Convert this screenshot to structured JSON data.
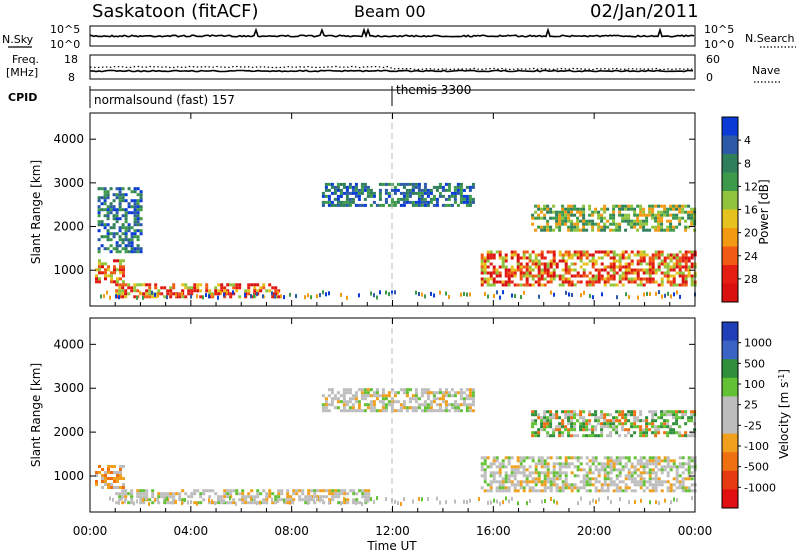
{
  "header": {
    "station": "Saskatoon (fitACF)",
    "beam": "Beam 00",
    "date": "02/Jan/2011"
  },
  "sky_panel": {
    "left_label": "N.Sky",
    "right_label": "N.Search",
    "ytick_top": "10^5",
    "ytick_bottom": "10^0",
    "right_tick_top": "10^5",
    "right_tick_bottom": "10^0"
  },
  "freq_panel": {
    "left_label_1": "Freq.",
    "left_label_2": "[MHz]",
    "right_label": "Nave",
    "ytick_top": "18",
    "ytick_bottom": "8",
    "right_tick_top": "60",
    "right_tick_bottom": "0"
  },
  "cpid_panel": {
    "label": "CPID",
    "segments": [
      {
        "name": "normalsound (fast) 157",
        "start_hour": 0
      },
      {
        "name": "themis 3300",
        "start_hour": 12
      }
    ]
  },
  "time_axis": {
    "label": "Time UT",
    "ticks": [
      "00:00",
      "04:00",
      "08:00",
      "12:00",
      "16:00",
      "20:00",
      "00:00"
    ]
  },
  "chart_data": [
    {
      "type": "heatmap",
      "title": "",
      "xlabel": "",
      "ylabel": "Slant Range [km]",
      "xlim": [
        0,
        24
      ],
      "ylim": [
        180,
        4600
      ],
      "yticks": [
        "1000",
        "2000",
        "3000",
        "4000"
      ],
      "colorbar": {
        "label": "Power [dB]",
        "ticks": [
          "4",
          "8",
          "12",
          "16",
          "20",
          "24",
          "28"
        ],
        "colors": [
          "#0b3bd6",
          "#2c5aa8",
          "#2f7f5a",
          "#3c9a4a",
          "#8fc43c",
          "#e6c21e",
          "#f29a12",
          "#f05a14",
          "#e51e14",
          "#d8100f"
        ]
      },
      "regions": [
        {
          "t": [
            0.2,
            1.3
          ],
          "r": [
            750,
            1250
          ],
          "level": "high"
        },
        {
          "t": [
            1.0,
            7.5
          ],
          "r": [
            400,
            700
          ],
          "level": "high"
        },
        {
          "t": [
            0.3,
            2.0
          ],
          "r": [
            1400,
            2900
          ],
          "level": "low"
        },
        {
          "t": [
            9.2,
            15.2
          ],
          "r": [
            2500,
            3000
          ],
          "level": "low"
        },
        {
          "t": [
            15.5,
            24.0
          ],
          "r": [
            650,
            1450
          ],
          "level": "high"
        },
        {
          "t": [
            17.5,
            24.0
          ],
          "r": [
            1900,
            2500
          ],
          "level": "mid"
        }
      ]
    },
    {
      "type": "heatmap",
      "title": "",
      "xlabel": "Time UT",
      "ylabel": "Slant Range [km]",
      "xlim": [
        0,
        24
      ],
      "ylim": [
        180,
        4600
      ],
      "yticks": [
        "1000",
        "2000",
        "3000",
        "4000"
      ],
      "colorbar": {
        "label": "Velocity [m s^-1]",
        "ticks": [
          "1000",
          "500",
          "100",
          "25",
          "-25",
          "-100",
          "-500",
          "-1000"
        ],
        "colors": [
          "#1f3fb8",
          "#3a63c4",
          "#2f8f3a",
          "#62c134",
          "#bdbdbd",
          "#bdbdbd",
          "#f0a01c",
          "#ef7010",
          "#e83a10",
          "#e01010"
        ]
      },
      "regions": [
        {
          "t": [
            0.2,
            1.3
          ],
          "r": [
            750,
            1250
          ],
          "level": "negative"
        },
        {
          "t": [
            1.0,
            11.0
          ],
          "r": [
            400,
            700
          ],
          "level": "ground"
        },
        {
          "t": [
            9.2,
            15.2
          ],
          "r": [
            2500,
            3000
          ],
          "level": "ground"
        },
        {
          "t": [
            15.5,
            24.0
          ],
          "r": [
            650,
            1450
          ],
          "level": "ground"
        },
        {
          "t": [
            17.5,
            24.0
          ],
          "r": [
            1900,
            2500
          ],
          "level": "positive"
        }
      ]
    }
  ]
}
